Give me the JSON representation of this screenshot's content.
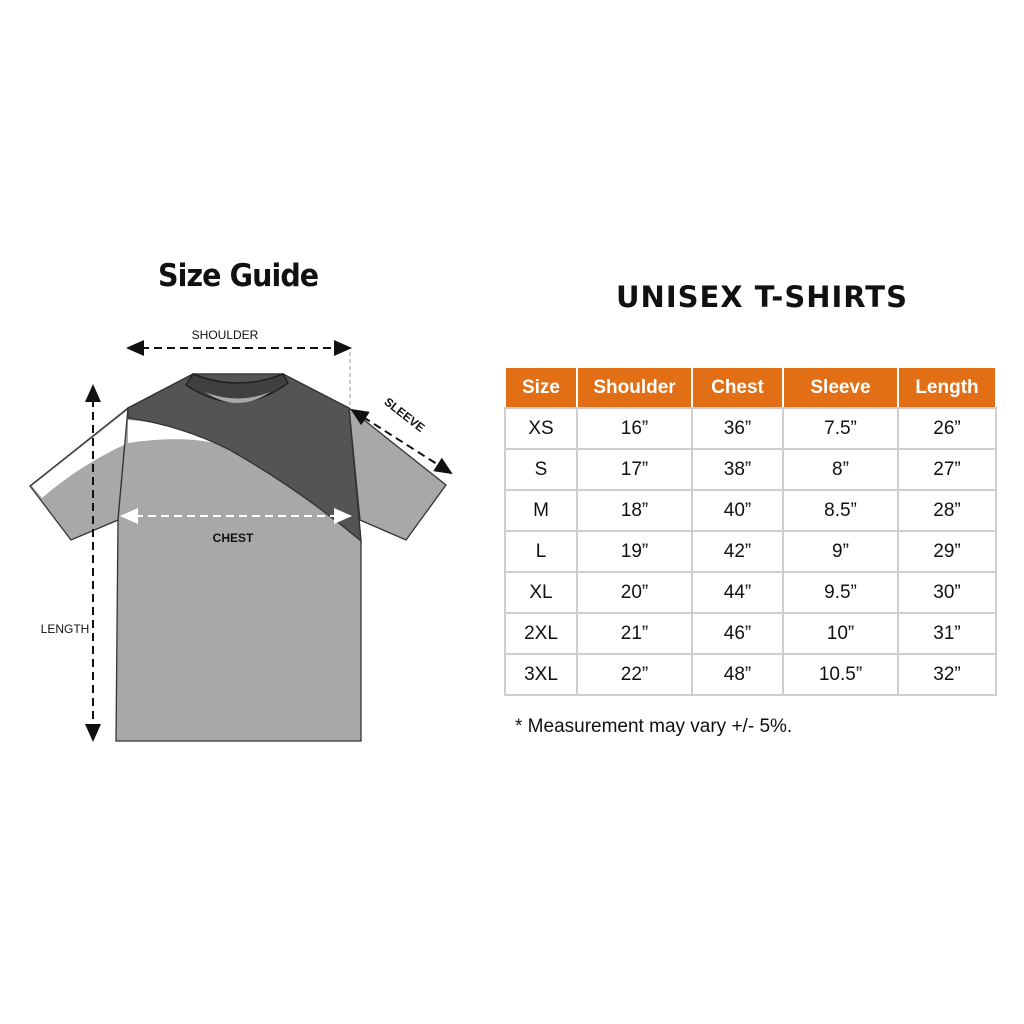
{
  "diagram": {
    "title": "Size Guide",
    "labels": {
      "shoulder": "SHOULDER",
      "sleeve": "SLEEVE",
      "chest": "CHEST",
      "length": "LENGTH"
    },
    "colors": {
      "dark_panel": "#535453",
      "body": "#a7a8aa",
      "white_panel": "#ffffff"
    }
  },
  "size_table": {
    "title": "UNISEX T-SHIRTS",
    "header_color": "#e26f16",
    "columns": [
      "Size",
      "Shoulder",
      "Chest",
      "Sleeve",
      "Length"
    ],
    "rows": [
      [
        "XS",
        "16”",
        "36”",
        "7.5”",
        "26”"
      ],
      [
        "S",
        "17”",
        "38”",
        "8”",
        "27”"
      ],
      [
        "M",
        "18”",
        "40”",
        "8.5”",
        "28”"
      ],
      [
        "L",
        "19”",
        "42”",
        "9”",
        "29”"
      ],
      [
        "XL",
        "20”",
        "44”",
        "9.5”",
        "30”"
      ],
      [
        "2XL",
        "21”",
        "46”",
        "10”",
        "31”"
      ],
      [
        "3XL",
        "22”",
        "48”",
        "10.5”",
        "32”"
      ]
    ],
    "note": "* Measurement may vary +/- 5%."
  }
}
